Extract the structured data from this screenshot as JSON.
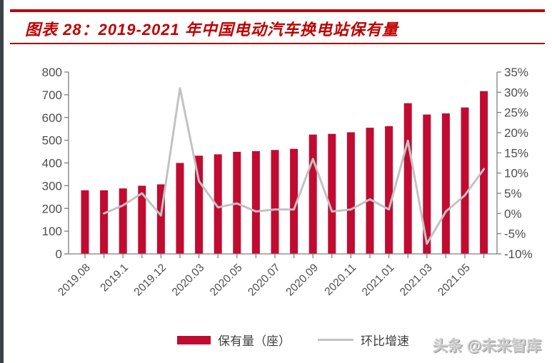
{
  "page": {
    "title": "图表 28：2019-2021 年中国电动汽车换电站保有量",
    "watermark": "头条 @未来智库"
  },
  "colors": {
    "accent_red": "#c00000",
    "bar_red": "#c20b31",
    "line_gray": "#c2c2c2",
    "axis_gray": "#7f7f7f",
    "tick_text": "#4d4d4d",
    "edge_strip": "#3c4146"
  },
  "legend": [
    {
      "label": "保有量（座）",
      "type": "bar",
      "color": "#c20b31"
    },
    {
      "label": "环比增速",
      "type": "line",
      "color": "#c2c2c2"
    }
  ],
  "chart_data": {
    "type": "bar+line",
    "title": "图表 28：2019-2021 年中国电动汽车换电站保有量",
    "categories": [
      "2019.08",
      "2019.09",
      "2019.10",
      "2019.11",
      "2019.12",
      "2020.02",
      "2020.03",
      "2020.04",
      "2020.05",
      "2020.06",
      "2020.07",
      "2020.08",
      "2020.09",
      "2020.10",
      "2020.11",
      "2020.12",
      "2021.01",
      "2021.02",
      "2021.03",
      "2021.04",
      "2021.05",
      "2021.06"
    ],
    "visible_xticks": [
      {
        "index": 0,
        "label": "2019.08"
      },
      {
        "index": 2,
        "label": "2019.1"
      },
      {
        "index": 4,
        "label": "2019.12"
      },
      {
        "index": 6,
        "label": "2020.03"
      },
      {
        "index": 8,
        "label": "2020.05"
      },
      {
        "index": 10,
        "label": "2020.07"
      },
      {
        "index": 12,
        "label": "2020.09"
      },
      {
        "index": 14,
        "label": "2020.11"
      },
      {
        "index": 16,
        "label": "2021.01"
      },
      {
        "index": 18,
        "label": "2021.03"
      },
      {
        "index": 20,
        "label": "2021.05"
      }
    ],
    "series": [
      {
        "name": "保有量（座）",
        "type": "bar",
        "axis": "left",
        "color": "#c20b31",
        "values": [
          280,
          280,
          288,
          300,
          306,
          400,
          432,
          438,
          449,
          452,
          457,
          462,
          525,
          528,
          535,
          555,
          562,
          663,
          613,
          618,
          644,
          716
        ]
      },
      {
        "name": "环比增速",
        "type": "line",
        "axis": "right",
        "color": "#c2c2c2",
        "values": [
          null,
          0,
          2,
          5,
          -0.5,
          31,
          8,
          1.5,
          2.5,
          0.5,
          1,
          1,
          13.5,
          0.5,
          1,
          3.5,
          1,
          18,
          -7.5,
          0.5,
          4.5,
          11
        ]
      }
    ],
    "left_axis": {
      "min": 0,
      "max": 800,
      "step": 100,
      "labels": [
        "0",
        "100",
        "200",
        "300",
        "400",
        "500",
        "600",
        "700",
        "800"
      ]
    },
    "right_axis": {
      "min": -10,
      "max": 35,
      "step": 5,
      "suffix": "%",
      "labels": [
        "-10%",
        "-5%",
        "0%",
        "5%",
        "10%",
        "15%",
        "20%",
        "25%",
        "30%",
        "35%"
      ]
    },
    "grid": false,
    "legend_position": "bottom"
  }
}
